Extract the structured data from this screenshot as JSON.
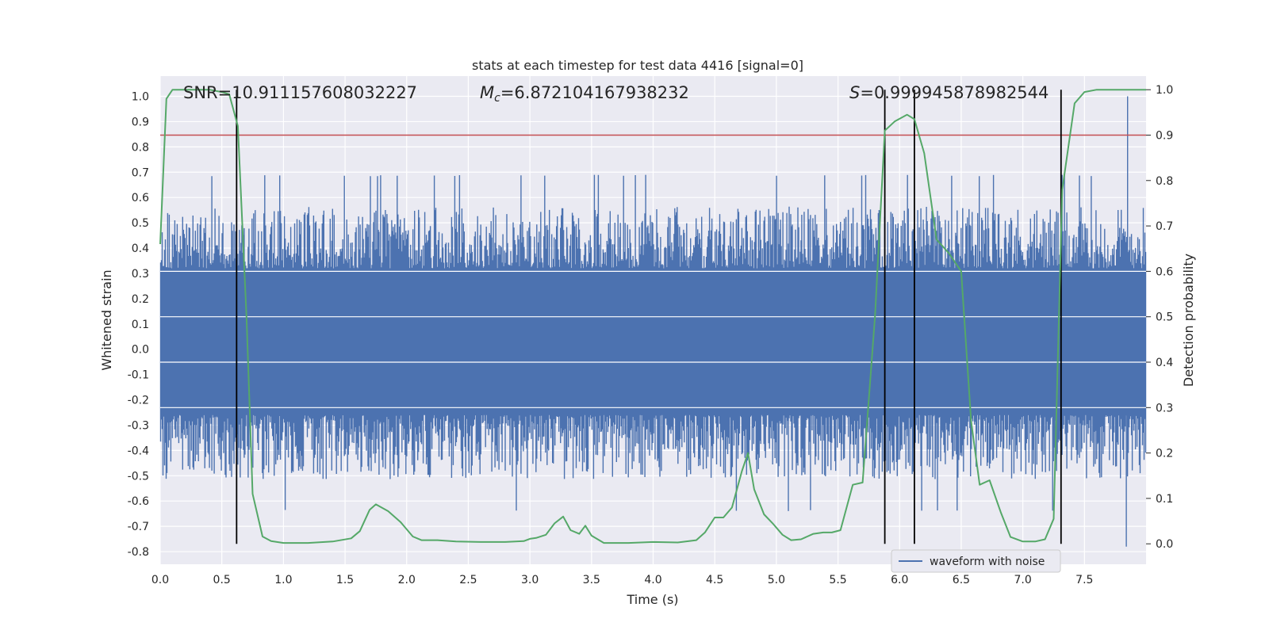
{
  "chart_data": {
    "type": "line",
    "title": "stats at each timestep for test data 4416 [signal=0]",
    "xlabel": "Time (s)",
    "ylabel_left": "Whitened strain",
    "ylabel_right": "Detection probability",
    "xlim": [
      0.0,
      8.0
    ],
    "ylim_left": [
      -0.85,
      1.08
    ],
    "ylim_right": [
      -0.045,
      1.03
    ],
    "x_ticks": [
      "0.0",
      "0.5",
      "1.0",
      "1.5",
      "2.0",
      "2.5",
      "3.0",
      "3.5",
      "4.0",
      "4.5",
      "5.0",
      "5.5",
      "6.0",
      "6.5",
      "7.0",
      "7.5"
    ],
    "y_ticks_left": [
      "-0.8",
      "-0.7",
      "-0.6",
      "-0.5",
      "-0.4",
      "-0.3",
      "-0.2",
      "-0.1",
      "0.0",
      "0.1",
      "0.2",
      "0.3",
      "0.4",
      "0.5",
      "0.6",
      "0.7",
      "0.8",
      "0.9",
      "1.0"
    ],
    "y_ticks_right": [
      "0.0",
      "0.1",
      "0.2",
      "0.3",
      "0.4",
      "0.5",
      "0.6",
      "0.7",
      "0.8",
      "0.9",
      "1.0"
    ],
    "grid": true,
    "legend": {
      "placement": "lower-right",
      "entries": [
        "waveform with noise"
      ]
    },
    "annotations": {
      "snr": "SNR=10.911157608032227",
      "mc_symbol": "M",
      "mc_sub": "c",
      "mc_value": "=6.872104167938232",
      "s_symbol": "S",
      "s_value": "=0.999945878982544"
    },
    "threshold": {
      "value": 0.9,
      "axis": "right",
      "color": "#c44e52"
    },
    "vertical_lines_x": [
      0.62,
      5.88,
      6.12,
      7.31
    ],
    "colors": {
      "waveform": "#4c72b0",
      "probability": "#55a868",
      "threshold": "#c44e52",
      "vlines": "#000000",
      "background": "#eaeaf2",
      "grid": "#ffffff"
    },
    "waveform_series": {
      "name": "waveform with noise",
      "x_range": [
        0.0,
        8.0
      ],
      "core_band": [
        -0.24,
        0.3
      ],
      "typical_peak_range": [
        0.3,
        0.55
      ],
      "typical_trough_range": [
        -0.25,
        -0.5
      ],
      "max": 1.0,
      "min": -0.78
    },
    "probability_series": {
      "x": [
        0.0,
        0.05,
        0.1,
        0.2,
        0.3,
        0.4,
        0.5,
        0.56,
        0.63,
        0.7,
        0.75,
        0.83,
        0.9,
        1.0,
        1.2,
        1.4,
        1.55,
        1.62,
        1.7,
        1.75,
        1.85,
        1.95,
        2.05,
        2.12,
        2.25,
        2.4,
        2.6,
        2.8,
        2.95,
        3.0,
        3.05,
        3.13,
        3.2,
        3.27,
        3.33,
        3.4,
        3.45,
        3.5,
        3.6,
        3.8,
        4.0,
        4.2,
        4.35,
        4.42,
        4.5,
        4.57,
        4.64,
        4.72,
        4.77,
        4.82,
        4.9,
        4.97,
        5.05,
        5.12,
        5.2,
        5.3,
        5.38,
        5.45,
        5.52,
        5.62,
        5.7,
        5.8,
        5.88,
        5.96,
        6.06,
        6.12,
        6.2,
        6.3,
        6.4,
        6.5,
        6.58,
        6.65,
        6.73,
        6.82,
        6.9,
        7.0,
        7.1,
        7.18,
        7.25,
        7.32,
        7.42,
        7.5,
        7.6,
        8.0
      ],
      "y": [
        0.66,
        0.98,
        1.0,
        1.0,
        1.0,
        1.0,
        0.995,
        0.99,
        0.92,
        0.5,
        0.11,
        0.016,
        0.006,
        0.002,
        0.002,
        0.005,
        0.012,
        0.028,
        0.075,
        0.087,
        0.072,
        0.048,
        0.016,
        0.008,
        0.008,
        0.005,
        0.004,
        0.004,
        0.006,
        0.011,
        0.013,
        0.02,
        0.045,
        0.06,
        0.03,
        0.022,
        0.04,
        0.018,
        0.002,
        0.002,
        0.004,
        0.003,
        0.008,
        0.025,
        0.058,
        0.058,
        0.08,
        0.16,
        0.2,
        0.12,
        0.065,
        0.045,
        0.02,
        0.008,
        0.01,
        0.022,
        0.025,
        0.025,
        0.03,
        0.13,
        0.135,
        0.5,
        0.91,
        0.93,
        0.945,
        0.935,
        0.86,
        0.67,
        0.64,
        0.6,
        0.27,
        0.13,
        0.14,
        0.07,
        0.015,
        0.005,
        0.005,
        0.01,
        0.055,
        0.78,
        0.97,
        0.995,
        1.0,
        1.0
      ]
    }
  }
}
